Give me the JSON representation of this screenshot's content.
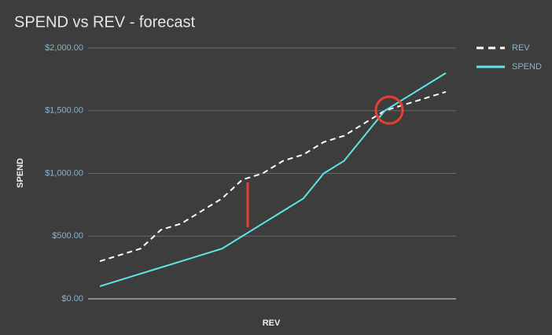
{
  "chart_data": {
    "type": "line",
    "title": "SPEND vs REV  - forecast",
    "x_label": "REV",
    "y_label": "SPEND",
    "categories": [
      null,
      null,
      null,
      null,
      null,
      null,
      null,
      null,
      null,
      null,
      null,
      null,
      null,
      null,
      null,
      null,
      null,
      null
    ],
    "series": [
      {
        "name": "REV",
        "color": "#ffffff",
        "dashed": true,
        "values": [
          300,
          350,
          400,
          550,
          600,
          700,
          800,
          950,
          1000,
          1100,
          1150,
          1250,
          1300,
          1400,
          1500,
          1550,
          1600,
          1650
        ]
      },
      {
        "name": "SPEND",
        "color": "#5ee6e6",
        "dashed": false,
        "values": [
          100,
          150,
          200,
          250,
          300,
          350,
          400,
          500,
          600,
          700,
          800,
          1000,
          1100,
          1300,
          1500,
          1600,
          1700,
          1800
        ]
      }
    ],
    "ylim": [
      0,
      2000
    ],
    "yticks": [
      {
        "value": 0,
        "label": "$0.00"
      },
      {
        "value": 500,
        "label": "$500.00"
      },
      {
        "value": 1000,
        "label": "$1,000.00"
      },
      {
        "value": 1500,
        "label": "$1,500.00"
      },
      {
        "value": 2000,
        "label": "$2,000.00"
      }
    ],
    "grid": true,
    "legend": "top-right"
  }
}
